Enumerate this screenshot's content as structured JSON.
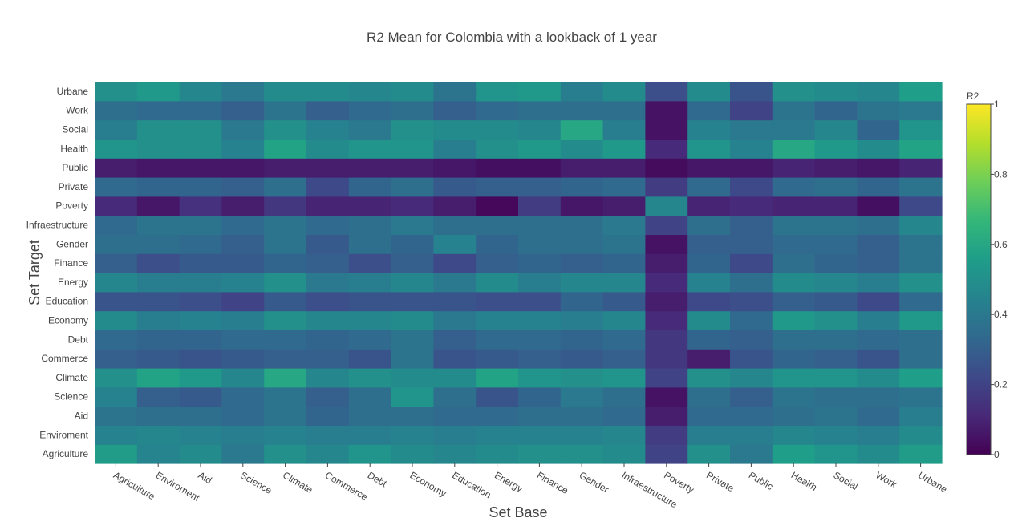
{
  "chart_data": {
    "type": "heatmap",
    "title": "R2 Mean for Colombia with a lookback of  1 year",
    "xlabel": "Set Base",
    "ylabel": "Set Target",
    "x_categories": [
      "Agriculture",
      "Enviroment",
      "Aid",
      "Science",
      "Climate",
      "Commerce",
      "Debt",
      "Economy",
      "Education",
      "Energy",
      "Finance",
      "Gender",
      "Infraestructure",
      "Poverty",
      "Private",
      "Public",
      "Health",
      "Social",
      "Work",
      "Urbane"
    ],
    "y_categories": [
      "Agriculture",
      "Enviroment",
      "Aid",
      "Science",
      "Climate",
      "Commerce",
      "Debt",
      "Economy",
      "Education",
      "Energy",
      "Finance",
      "Gender",
      "Infraestructure",
      "Poverty",
      "Private",
      "Public",
      "Health",
      "Social",
      "Work",
      "Urbane"
    ],
    "colorscale": "Viridis",
    "zrange": [
      0,
      1
    ],
    "colorbar": {
      "title": "R2",
      "ticks": [
        0,
        0.2,
        0.4,
        0.6,
        0.8,
        1
      ],
      "tick_labels": [
        "0",
        "0.2",
        "0.4",
        "0.6",
        "0.8",
        "1"
      ]
    },
    "z": [
      [
        0.55,
        0.45,
        0.48,
        0.4,
        0.5,
        0.46,
        0.52,
        0.48,
        0.46,
        0.48,
        0.5,
        0.5,
        0.48,
        0.2,
        0.5,
        0.4,
        0.56,
        0.52,
        0.48,
        0.55
      ],
      [
        0.44,
        0.46,
        0.44,
        0.42,
        0.44,
        0.42,
        0.42,
        0.44,
        0.42,
        0.44,
        0.44,
        0.44,
        0.46,
        0.18,
        0.42,
        0.42,
        0.46,
        0.44,
        0.42,
        0.48
      ],
      [
        0.38,
        0.36,
        0.36,
        0.34,
        0.38,
        0.32,
        0.36,
        0.36,
        0.34,
        0.34,
        0.36,
        0.36,
        0.34,
        0.08,
        0.34,
        0.34,
        0.36,
        0.38,
        0.34,
        0.42
      ],
      [
        0.44,
        0.3,
        0.28,
        0.34,
        0.38,
        0.3,
        0.36,
        0.52,
        0.36,
        0.26,
        0.32,
        0.4,
        0.36,
        0.05,
        0.36,
        0.3,
        0.38,
        0.36,
        0.36,
        0.38
      ],
      [
        0.5,
        0.58,
        0.54,
        0.46,
        0.6,
        0.46,
        0.5,
        0.48,
        0.48,
        0.58,
        0.52,
        0.5,
        0.52,
        0.2,
        0.5,
        0.46,
        0.52,
        0.52,
        0.48,
        0.56
      ],
      [
        0.3,
        0.28,
        0.26,
        0.28,
        0.3,
        0.3,
        0.26,
        0.38,
        0.26,
        0.28,
        0.3,
        0.28,
        0.3,
        0.16,
        0.08,
        0.26,
        0.32,
        0.3,
        0.26,
        0.36
      ],
      [
        0.34,
        0.32,
        0.32,
        0.34,
        0.34,
        0.32,
        0.34,
        0.38,
        0.3,
        0.34,
        0.34,
        0.32,
        0.34,
        0.16,
        0.32,
        0.3,
        0.36,
        0.36,
        0.34,
        0.36
      ],
      [
        0.48,
        0.42,
        0.44,
        0.42,
        0.5,
        0.46,
        0.46,
        0.48,
        0.4,
        0.44,
        0.44,
        0.42,
        0.46,
        0.12,
        0.48,
        0.34,
        0.54,
        0.5,
        0.42,
        0.54
      ],
      [
        0.26,
        0.26,
        0.24,
        0.2,
        0.28,
        0.24,
        0.26,
        0.26,
        0.26,
        0.24,
        0.24,
        0.32,
        0.28,
        0.08,
        0.22,
        0.24,
        0.3,
        0.28,
        0.22,
        0.34
      ],
      [
        0.46,
        0.42,
        0.42,
        0.44,
        0.5,
        0.4,
        0.42,
        0.46,
        0.4,
        0.48,
        0.42,
        0.46,
        0.46,
        0.12,
        0.44,
        0.36,
        0.48,
        0.46,
        0.42,
        0.5
      ],
      [
        0.3,
        0.24,
        0.28,
        0.28,
        0.32,
        0.3,
        0.24,
        0.3,
        0.22,
        0.3,
        0.32,
        0.3,
        0.32,
        0.08,
        0.32,
        0.22,
        0.36,
        0.32,
        0.3,
        0.38
      ],
      [
        0.36,
        0.36,
        0.34,
        0.3,
        0.38,
        0.28,
        0.36,
        0.32,
        0.44,
        0.32,
        0.36,
        0.36,
        0.38,
        0.05,
        0.3,
        0.3,
        0.34,
        0.34,
        0.3,
        0.38
      ],
      [
        0.34,
        0.38,
        0.38,
        0.34,
        0.38,
        0.34,
        0.36,
        0.4,
        0.36,
        0.36,
        0.36,
        0.36,
        0.4,
        0.2,
        0.36,
        0.3,
        0.38,
        0.38,
        0.36,
        0.46
      ],
      [
        0.12,
        0.06,
        0.14,
        0.08,
        0.16,
        0.1,
        0.1,
        0.12,
        0.08,
        0.02,
        0.18,
        0.06,
        0.08,
        0.46,
        0.1,
        0.12,
        0.1,
        0.1,
        0.04,
        0.22
      ],
      [
        0.34,
        0.32,
        0.32,
        0.3,
        0.36,
        0.22,
        0.32,
        0.36,
        0.28,
        0.3,
        0.3,
        0.32,
        0.34,
        0.18,
        0.34,
        0.22,
        0.34,
        0.36,
        0.32,
        0.38
      ],
      [
        0.08,
        0.06,
        0.06,
        0.06,
        0.08,
        0.08,
        0.08,
        0.08,
        0.06,
        0.04,
        0.04,
        0.08,
        0.08,
        0.03,
        0.06,
        0.06,
        0.1,
        0.08,
        0.06,
        0.1
      ],
      [
        0.52,
        0.5,
        0.5,
        0.44,
        0.58,
        0.48,
        0.52,
        0.52,
        0.42,
        0.5,
        0.54,
        0.48,
        0.54,
        0.12,
        0.52,
        0.44,
        0.6,
        0.54,
        0.48,
        0.58
      ],
      [
        0.42,
        0.5,
        0.5,
        0.4,
        0.5,
        0.44,
        0.4,
        0.5,
        0.48,
        0.48,
        0.46,
        0.6,
        0.42,
        0.05,
        0.44,
        0.4,
        0.4,
        0.46,
        0.32,
        0.52
      ],
      [
        0.36,
        0.34,
        0.34,
        0.3,
        0.38,
        0.3,
        0.34,
        0.36,
        0.3,
        0.34,
        0.36,
        0.36,
        0.36,
        0.05,
        0.34,
        0.2,
        0.38,
        0.32,
        0.38,
        0.4
      ],
      [
        0.5,
        0.54,
        0.46,
        0.4,
        0.48,
        0.48,
        0.46,
        0.48,
        0.38,
        0.52,
        0.54,
        0.42,
        0.48,
        0.24,
        0.48,
        0.26,
        0.5,
        0.48,
        0.46,
        0.56
      ]
    ]
  }
}
